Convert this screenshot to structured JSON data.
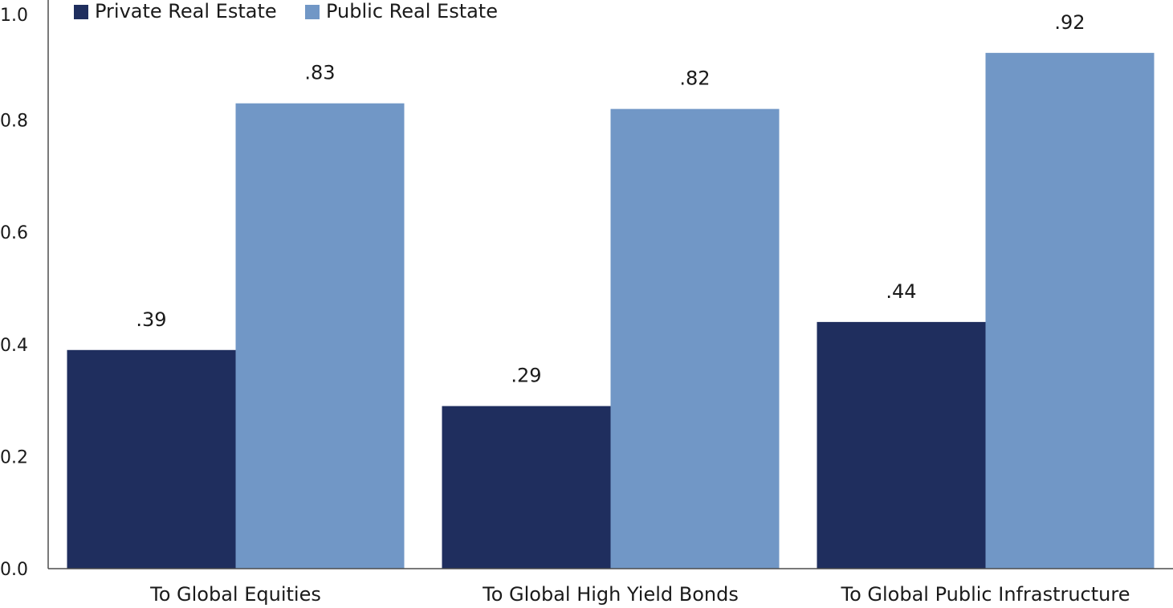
{
  "chart_data": {
    "type": "bar",
    "title": "",
    "xlabel": "",
    "ylabel": "",
    "ylim": [
      0,
      1.0
    ],
    "yticks": [
      "0.0",
      "0.2",
      "0.4",
      "0.6",
      "0.8",
      "1.0"
    ],
    "grid": false,
    "legend_position": "top-left",
    "categories": [
      "To Global Equities",
      "To Global High Yield Bonds",
      "To Global Public Infrastructure"
    ],
    "series": [
      {
        "name": "Private Real Estate",
        "color": "#1f2e5e",
        "values": [
          0.39,
          0.29,
          0.44
        ],
        "labels": [
          ".39",
          ".29",
          ".44"
        ]
      },
      {
        "name": "Public Real Estate",
        "color": "#7197c6",
        "values": [
          0.83,
          0.82,
          0.92
        ],
        "labels": [
          ".83",
          ".82",
          ".92"
        ]
      }
    ]
  }
}
